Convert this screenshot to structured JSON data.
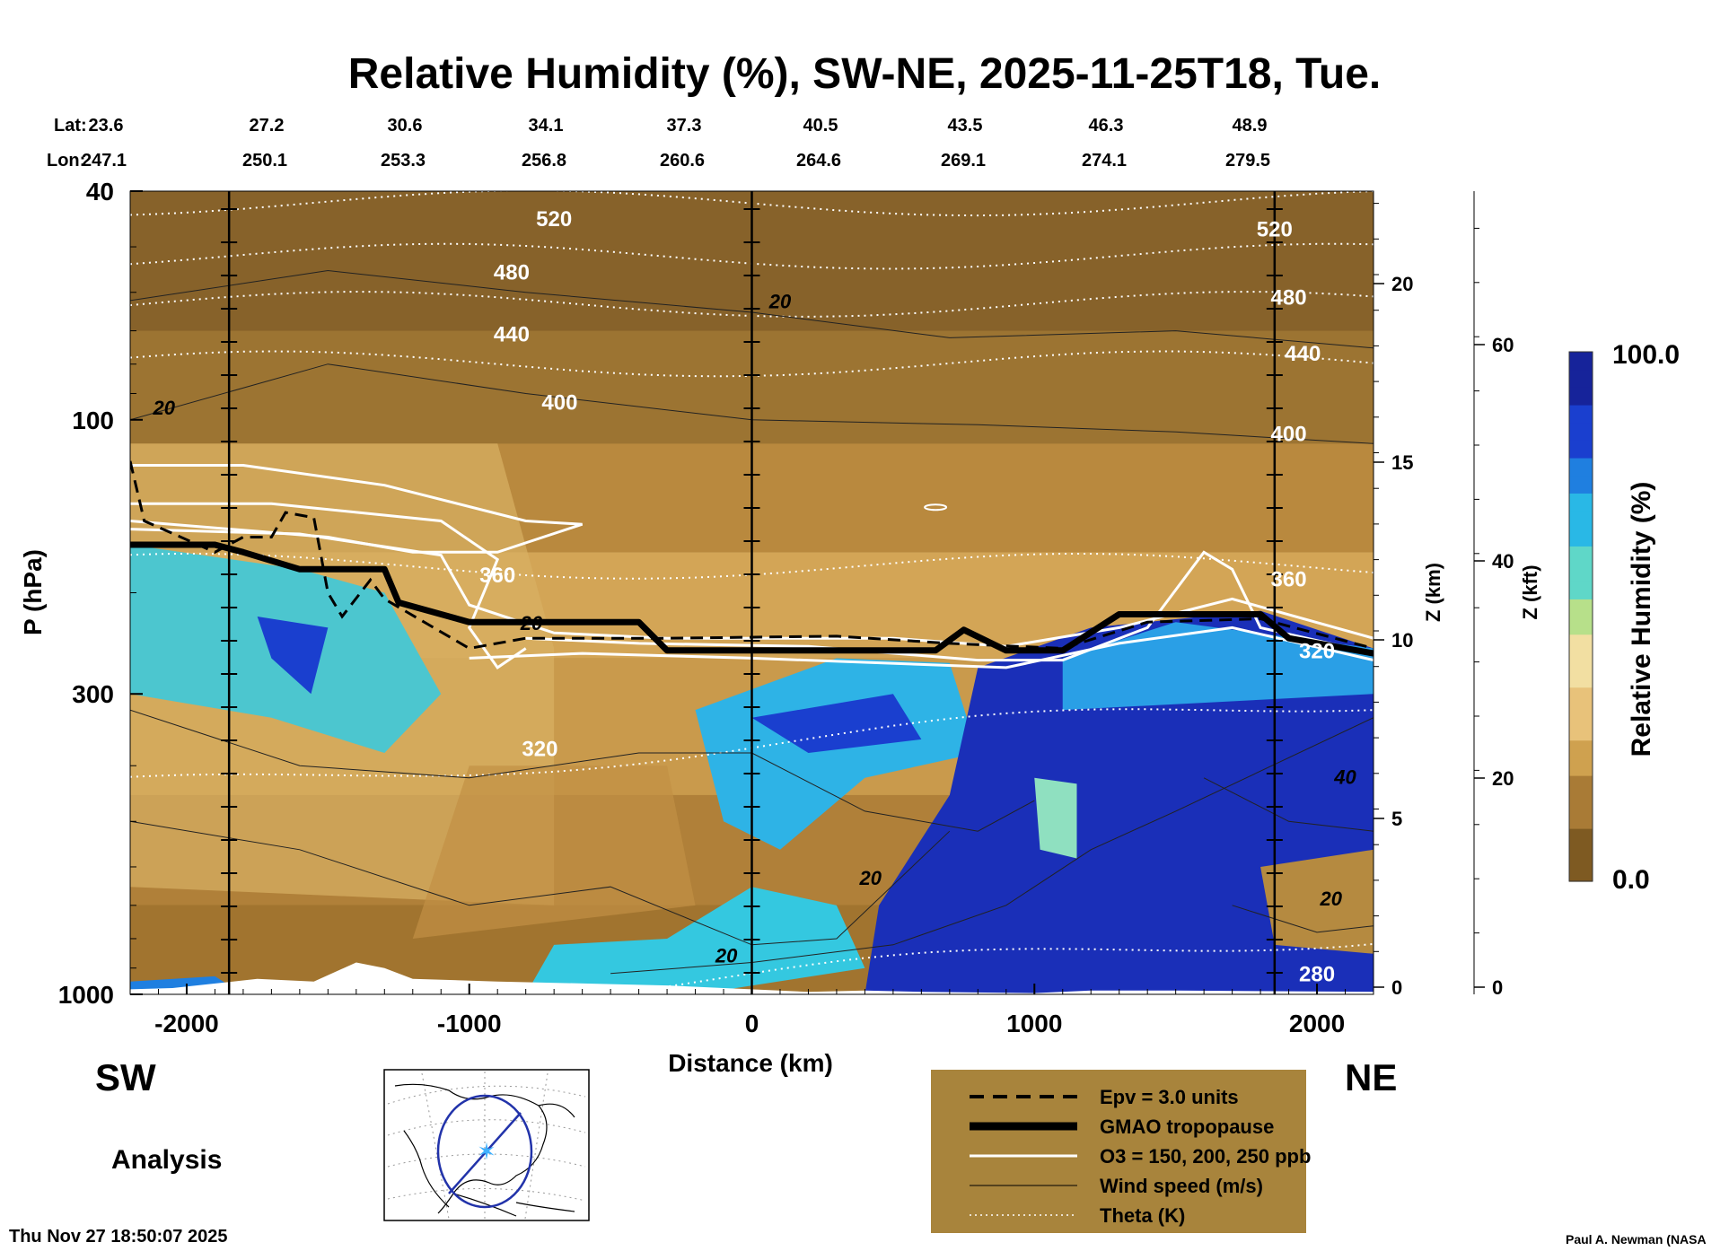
{
  "chart_data": {
    "type": "heatmap",
    "title": "Relative Humidity (%), SW-NE, 2025-11-25T18, Tue.",
    "xlabel": "Distance (km)",
    "ylabel": "P (hPa)",
    "xlim": [
      -2200,
      2200
    ],
    "ylim": [
      1000,
      40
    ],
    "y_scale": "log",
    "x_ticks": [
      "-2000",
      "-1000",
      "0",
      "1000",
      "2000"
    ],
    "y_ticks": [
      "40",
      "100",
      "300",
      "1000"
    ],
    "z_km_label": "Z (km)",
    "z_km_ticks": [
      "20",
      "15",
      "10",
      "5",
      "0"
    ],
    "z_kft_label": "Z (kft)",
    "z_kft_ticks": [
      "60",
      "40",
      "20",
      "0"
    ],
    "lat_label": "Lat:",
    "lon_label": "Lon:",
    "lat_values": [
      "23.6",
      "27.2",
      "30.6",
      "34.1",
      "37.3",
      "40.5",
      "43.5",
      "46.3",
      "48.9"
    ],
    "lon_values": [
      "247.1",
      "250.1",
      "253.3",
      "256.8",
      "260.6",
      "264.6",
      "269.1",
      "274.1",
      "279.5"
    ],
    "left_end_label": "SW",
    "right_end_label": "NE",
    "colorbar": {
      "label": "Relative Humidity (%)",
      "min_label": "0.0",
      "max_label": "100.0",
      "colors": [
        "#7e5a22",
        "#a97b36",
        "#cfa14f",
        "#e8c27a",
        "#f2dfa2",
        "#b7e08a",
        "#5fd7c8",
        "#29b8e6",
        "#1f7fe0",
        "#1a3fcf",
        "#16239a"
      ]
    },
    "tropopause_km": [
      {
        "x": -2200,
        "p": 165
      },
      {
        "x": -1900,
        "p": 165
      },
      {
        "x": -1800,
        "p": 170
      },
      {
        "x": -1600,
        "p": 182
      },
      {
        "x": -1300,
        "p": 182
      },
      {
        "x": -1250,
        "p": 208
      },
      {
        "x": -1000,
        "p": 225
      },
      {
        "x": -700,
        "p": 225
      },
      {
        "x": -400,
        "p": 225
      },
      {
        "x": -300,
        "p": 252
      },
      {
        "x": 650,
        "p": 252
      },
      {
        "x": 750,
        "p": 232
      },
      {
        "x": 900,
        "p": 252
      },
      {
        "x": 1100,
        "p": 252
      },
      {
        "x": 1300,
        "p": 218
      },
      {
        "x": 1800,
        "p": 218
      },
      {
        "x": 1900,
        "p": 240
      },
      {
        "x": 2200,
        "p": 255
      }
    ],
    "theta_contour_labels": [
      "520",
      "480",
      "440",
      "400",
      "360",
      "320",
      "280"
    ],
    "wind_contour_labels": [
      "20",
      "40"
    ],
    "legend": [
      {
        "label": "Epv = 3.0 units",
        "style": "dashed",
        "color": "#000000"
      },
      {
        "label": "GMAO tropopause",
        "style": "thick",
        "color": "#000000"
      },
      {
        "label": "O3 = 150, 200, 250 ppb",
        "style": "solid",
        "color": "#ffffff"
      },
      {
        "label": "Wind speed (m/s)",
        "style": "thin",
        "color": "#000000"
      },
      {
        "label": "Theta (K)",
        "style": "dotted",
        "color": "#ffffff"
      }
    ],
    "legend_placement": "bottom-right",
    "analysis_label": "Analysis",
    "timestamp": "Thu Nov 27 18:50:07 2025",
    "credit": "Paul A. Newman (NASA"
  }
}
